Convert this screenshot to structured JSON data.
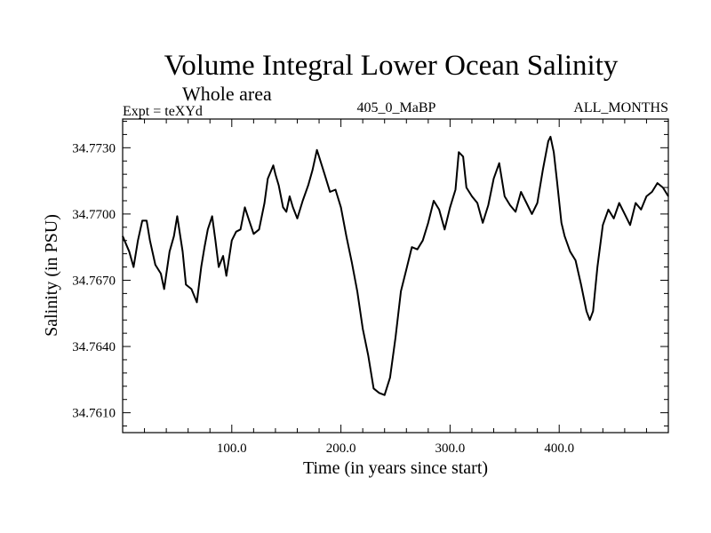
{
  "chart_data": {
    "type": "line",
    "title": "Volume Integral Lower Ocean Salinity",
    "subtitle": "Whole area",
    "header_left": "Expt = teXYd",
    "header_center": "405_0_MaBP",
    "header_right": "ALL_MONTHS",
    "xlabel": "Time (in years since start)",
    "ylabel": "Salinity (in PSU)",
    "xlim": [
      0,
      500
    ],
    "ylim": [
      34.7601,
      34.7743
    ],
    "xticks": [
      100,
      200,
      300,
      400
    ],
    "xtick_labels": [
      "100.0",
      "200.0",
      "300.0",
      "400.0"
    ],
    "yticks": [
      34.761,
      34.764,
      34.767,
      34.77,
      34.773
    ],
    "ytick_labels": [
      "34.7610",
      "34.7640",
      "34.7670",
      "34.7700",
      "34.7730"
    ],
    "grid": false,
    "line_color": "#000000",
    "series": [
      {
        "x": [
          0,
          6,
          10,
          14,
          18,
          22,
          25,
          30,
          35,
          38,
          43,
          47,
          50,
          55,
          58,
          63,
          68,
          72,
          75,
          78,
          82,
          85,
          88,
          92,
          95,
          100,
          104,
          108,
          112,
          116,
          120,
          125,
          130,
          133,
          138,
          140,
          143,
          147,
          150,
          153,
          156,
          160,
          165,
          170,
          174,
          178,
          180,
          185,
          190,
          195,
          200,
          205,
          210,
          215,
          220,
          225,
          230,
          235,
          240,
          245,
          250,
          255,
          260,
          265,
          270,
          275,
          280,
          285,
          290,
          295,
          300,
          305,
          308,
          312,
          315,
          320,
          325,
          330,
          335,
          340,
          345,
          350,
          355,
          360,
          365,
          370,
          375,
          380,
          385,
          390,
          392,
          395,
          398,
          402,
          405,
          410,
          415,
          420,
          425,
          428,
          431,
          435,
          440,
          445,
          450,
          455,
          460,
          465,
          470,
          475,
          480,
          485,
          490,
          495,
          500
        ],
        "y": [
          34.769,
          34.7683,
          34.7676,
          34.7688,
          34.7697,
          34.7697,
          34.7688,
          34.7677,
          34.7673,
          34.7666,
          34.7683,
          34.769,
          34.7699,
          34.7683,
          34.7668,
          34.7666,
          34.766,
          34.7676,
          34.7685,
          34.7693,
          34.7699,
          34.7688,
          34.7676,
          34.7681,
          34.7672,
          34.7688,
          34.7692,
          34.7693,
          34.7703,
          34.7697,
          34.7691,
          34.7693,
          34.7705,
          34.7716,
          34.7722,
          34.7718,
          34.7713,
          34.7703,
          34.7701,
          34.7708,
          34.7703,
          34.7698,
          34.7706,
          34.7713,
          34.772,
          34.7729,
          34.7726,
          34.7718,
          34.771,
          34.7711,
          34.7703,
          34.769,
          34.7678,
          34.7665,
          34.7648,
          34.7636,
          34.7621,
          34.7619,
          34.7618,
          34.7626,
          34.7644,
          34.7665,
          34.7675,
          34.7685,
          34.7684,
          34.7688,
          34.7696,
          34.7706,
          34.7702,
          34.7693,
          34.7703,
          34.7711,
          34.7728,
          34.7726,
          34.7712,
          34.7708,
          34.7705,
          34.7696,
          34.7704,
          34.7716,
          34.7723,
          34.7708,
          34.7704,
          34.7701,
          34.771,
          34.7705,
          34.77,
          34.7705,
          34.772,
          34.7733,
          34.7735,
          34.7728,
          34.7715,
          34.7696,
          34.769,
          34.7683,
          34.7679,
          34.7668,
          34.7656,
          34.7652,
          34.7656,
          34.7676,
          34.7695,
          34.7702,
          34.7698,
          34.7705,
          34.77,
          34.7695,
          34.7705,
          34.7702,
          34.7708,
          34.771,
          34.7714,
          34.7712,
          34.7708
        ]
      }
    ]
  }
}
